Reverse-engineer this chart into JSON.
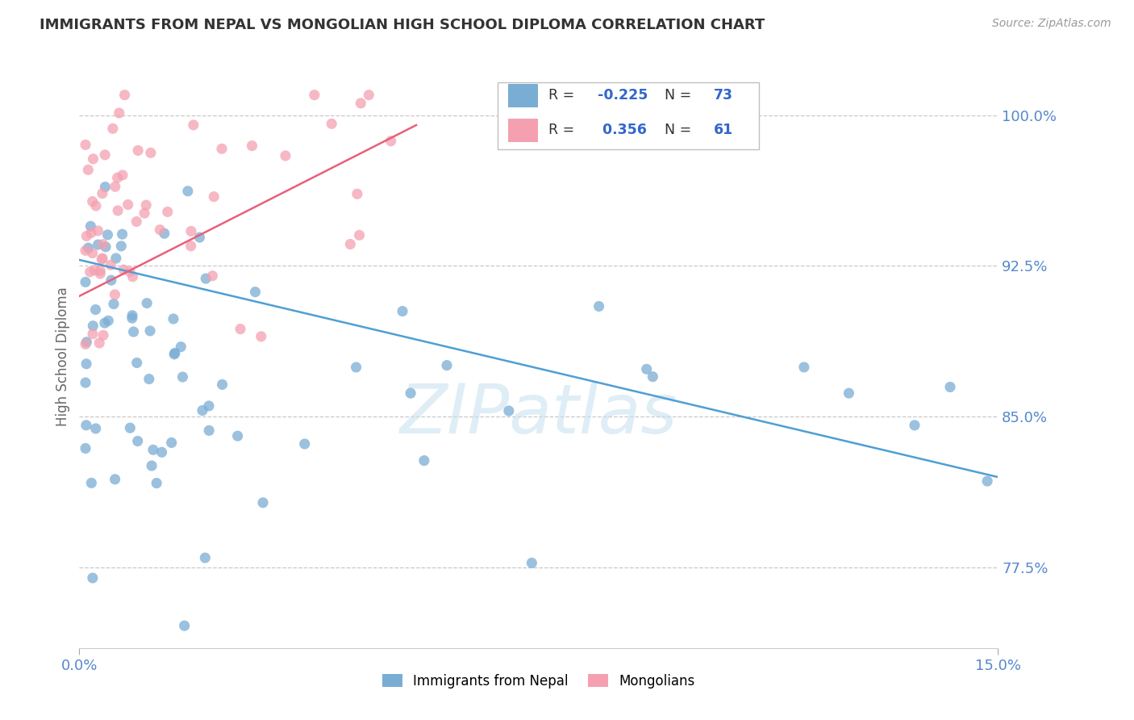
{
  "title": "IMMIGRANTS FROM NEPAL VS MONGOLIAN HIGH SCHOOL DIPLOMA CORRELATION CHART",
  "source": "Source: ZipAtlas.com",
  "ylabel": "High School Diploma",
  "xlim": [
    0.0,
    0.15
  ],
  "ylim": [
    0.735,
    1.025
  ],
  "watermark": "ZIPatlas",
  "nepal_R": -0.225,
  "nepal_N": 73,
  "mongolia_R": 0.356,
  "mongolia_N": 61,
  "nepal_color": "#7aadd4",
  "mongolia_color": "#f4a0b0",
  "nepal_line_color": "#4f9fd4",
  "mongolia_line_color": "#e8607a",
  "background_color": "#ffffff",
  "title_color": "#333333",
  "axis_label_color": "#5588cc",
  "grid_color": "#c8c8c8",
  "ytick_positions": [
    0.775,
    0.85,
    0.925,
    1.0
  ],
  "ytick_labels": [
    "77.5%",
    "85.0%",
    "92.5%",
    "100.0%"
  ],
  "nepal_trend_x0": 0.0,
  "nepal_trend_y0": 0.928,
  "nepal_trend_x1": 0.15,
  "nepal_trend_y1": 0.82,
  "mongolia_trend_x0": 0.0,
  "mongolia_trend_y0": 0.91,
  "mongolia_trend_x1": 0.055,
  "mongolia_trend_y1": 0.995
}
